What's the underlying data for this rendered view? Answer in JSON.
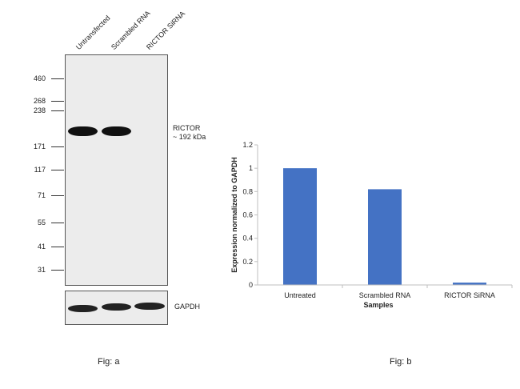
{
  "fig_a": {
    "caption": "Fig: a",
    "lane_labels": [
      "Untransfected",
      "Scrambled RNA",
      "RICTOR SiRNA"
    ],
    "mw_markers": [
      "460",
      "268",
      "238",
      "171",
      "117",
      "71",
      "55",
      "41",
      "31"
    ],
    "target_label_line1": "RICTOR",
    "target_label_line2": "~ 192 kDa",
    "loading_control_label": "GAPDH",
    "band_color": "#111111",
    "membrane_color": "#ececec"
  },
  "fig_b": {
    "caption": "Fig: b",
    "bar_color": "#4472c4"
  },
  "chart_data": {
    "type": "bar",
    "categories": [
      "Untreated",
      "Scrambled RNA",
      "RICTOR SiRNA"
    ],
    "values": [
      1.0,
      0.82,
      0.02
    ],
    "title": "",
    "xlabel": "Samples",
    "ylabel": "Expression normalized to GAPDH",
    "ylim": [
      0,
      1.2
    ],
    "yticks": [
      "0",
      "0.2",
      "0.4",
      "0.6",
      "0.8",
      "1",
      "1.2"
    ],
    "grid": false,
    "legend": "none"
  }
}
